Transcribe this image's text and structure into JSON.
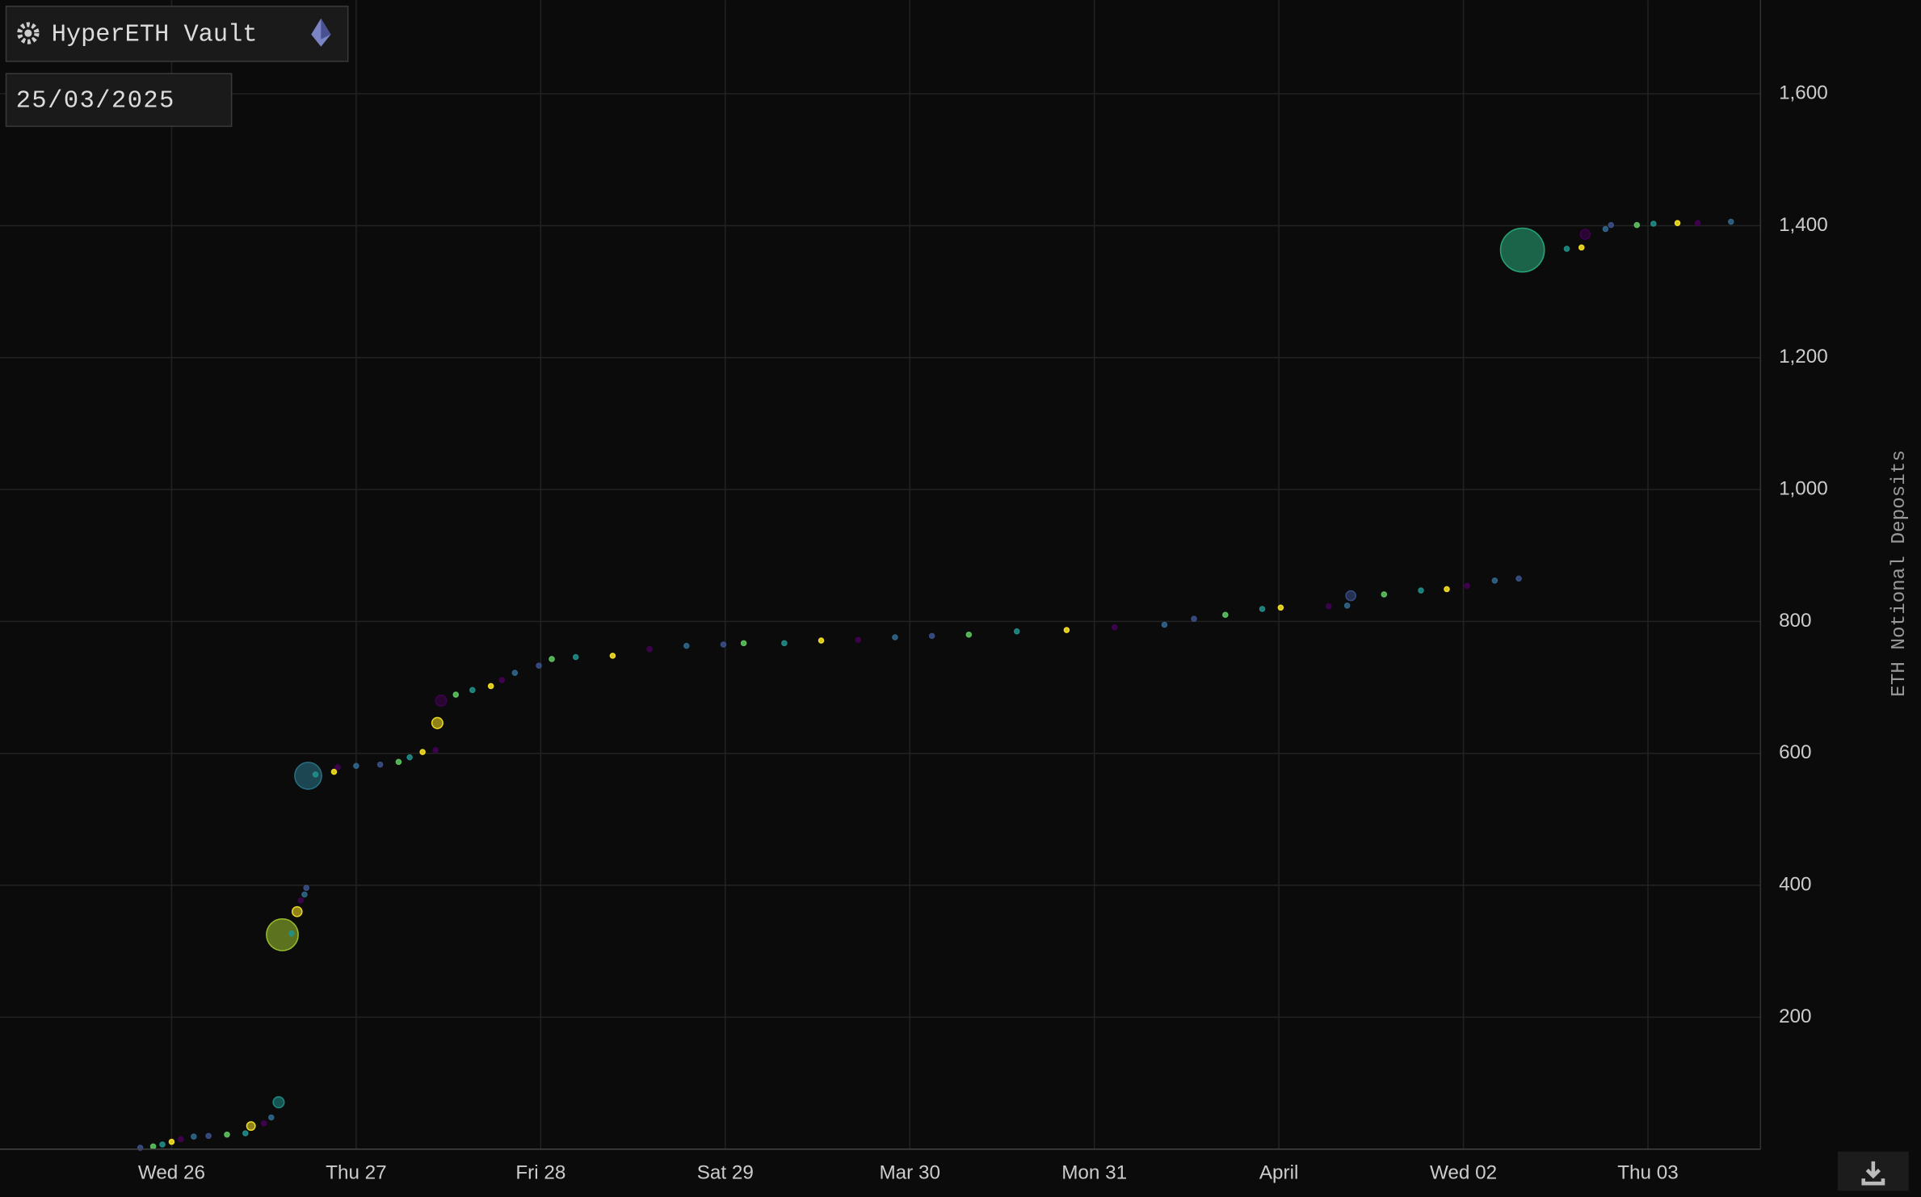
{
  "chart_data": {
    "type": "scatter",
    "title": "HyperETH Vault",
    "date": "25/03/2025",
    "ylabel": "ETH Notional Deposits",
    "x": [
      25.83,
      25.9,
      25.95,
      26,
      26.05,
      26.12,
      26.2,
      26.3,
      26.4,
      26.43,
      26.5,
      26.54,
      26.58,
      26.6,
      26.65,
      26.68,
      26.7,
      26.72,
      26.73,
      26.74,
      26.78,
      26.88,
      26.9,
      27,
      27.13,
      27.23,
      27.29,
      27.36,
      27.43,
      27.44,
      27.46,
      27.54,
      27.63,
      27.73,
      27.79,
      27.86,
      27.99,
      28.06,
      28.19,
      28.39,
      28.59,
      28.79,
      28.99,
      29.1,
      29.32,
      29.52,
      29.72,
      29.92,
      30.12,
      30.32,
      30.58,
      30.85,
      31.11,
      31.38,
      31.54,
      31.71,
      31.91,
      32.01,
      32.27,
      32.37,
      32.39,
      32.57,
      32.77,
      32.91,
      33.02,
      33.17,
      33.3,
      33.32,
      33.56,
      33.64,
      33.66,
      33.77,
      33.8,
      33.94,
      34.03,
      34.16,
      34.27,
      34.45
    ],
    "values": [
      2,
      4,
      7,
      11,
      15,
      19,
      20,
      22,
      24,
      35,
      39,
      48,
      71,
      325,
      327,
      360,
      377,
      386,
      396,
      566,
      568,
      572,
      579,
      581,
      583,
      587,
      594,
      602,
      605,
      646,
      680,
      689,
      696,
      702,
      711,
      722,
      733,
      743,
      746,
      748,
      758,
      763,
      765,
      767,
      767,
      771,
      772,
      776,
      778,
      780,
      785,
      787,
      791,
      795,
      804,
      810,
      819,
      821,
      823,
      824,
      839,
      841,
      847,
      849,
      854,
      862,
      865,
      1363,
      1365,
      1367,
      1387,
      1395,
      1401,
      1401,
      1403,
      1404,
      1404,
      1406
    ],
    "sizes": [
      1,
      1,
      1,
      1,
      1,
      1,
      1,
      1,
      1,
      3,
      1,
      1,
      5,
      42,
      1,
      4,
      1,
      1,
      1,
      30,
      1,
      1,
      1,
      1,
      1,
      1,
      1,
      1,
      1,
      5,
      5,
      1,
      1,
      1,
      1,
      1,
      1,
      1,
      1,
      1,
      1,
      1,
      1,
      1,
      1,
      1,
      1,
      1,
      1,
      1,
      1,
      1,
      1,
      1,
      1,
      1,
      1,
      1,
      1,
      1,
      4,
      1,
      1,
      1,
      1,
      1,
      1,
      80,
      1,
      1,
      4,
      1,
      1,
      1,
      1,
      1,
      1,
      1
    ],
    "colors": [
      "#3b528b",
      "#5ec962",
      "#21918c",
      "#fde725",
      "#440154",
      "#31688e",
      "#3b528b",
      "#5ec962",
      "#21918c",
      "#fde725",
      "#440154",
      "#31688e",
      "#21918c",
      "#a0c832",
      "#21918c",
      "#fde725",
      "#440154",
      "#31688e",
      "#3b528b",
      "#2a788e",
      "#21918c",
      "#fde725",
      "#440154",
      "#31688e",
      "#3b528b",
      "#5ec962",
      "#21918c",
      "#fde725",
      "#440154",
      "#fde725",
      "#440154",
      "#5ec962",
      "#21918c",
      "#fde725",
      "#440154",
      "#31688e",
      "#3b528b",
      "#5ec962",
      "#21918c",
      "#fde725",
      "#440154",
      "#31688e",
      "#3b528b",
      "#5ec962",
      "#21918c",
      "#fde725",
      "#440154",
      "#31688e",
      "#3b528b",
      "#5ec962",
      "#21918c",
      "#fde725",
      "#440154",
      "#31688e",
      "#3b528b",
      "#5ec962",
      "#21918c",
      "#fde725",
      "#440154",
      "#31688e",
      "#3b528b",
      "#5ec962",
      "#21918c",
      "#fde725",
      "#440154",
      "#31688e",
      "#3b528b",
      "#29af7f",
      "#21918c",
      "#fde725",
      "#440154",
      "#31688e",
      "#3b528b",
      "#5ec962",
      "#21918c",
      "#fde725",
      "#440154",
      "#31688e"
    ],
    "xlim": [
      25.07,
      34.61
    ],
    "ylim": [
      0,
      1742
    ],
    "xticks": [
      {
        "value": 26,
        "label": "Wed 26"
      },
      {
        "value": 27,
        "label": "Thu 27"
      },
      {
        "value": 28,
        "label": "Fri 28"
      },
      {
        "value": 29,
        "label": "Sat 29"
      },
      {
        "value": 30,
        "label": "Mar 30"
      },
      {
        "value": 31,
        "label": "Mon 31"
      },
      {
        "value": 32,
        "label": "April"
      },
      {
        "value": 33,
        "label": "Wed 02"
      },
      {
        "value": 34,
        "label": "Thu 03"
      }
    ],
    "yticks": [
      200,
      400,
      600,
      800,
      {
        "value": 1000,
        "label": "1,000"
      },
      {
        "value": 1200,
        "label": "1,200"
      },
      {
        "value": 1400,
        "label": "1,400"
      },
      {
        "value": 1600,
        "label": "1,600"
      }
    ],
    "grid": true
  }
}
